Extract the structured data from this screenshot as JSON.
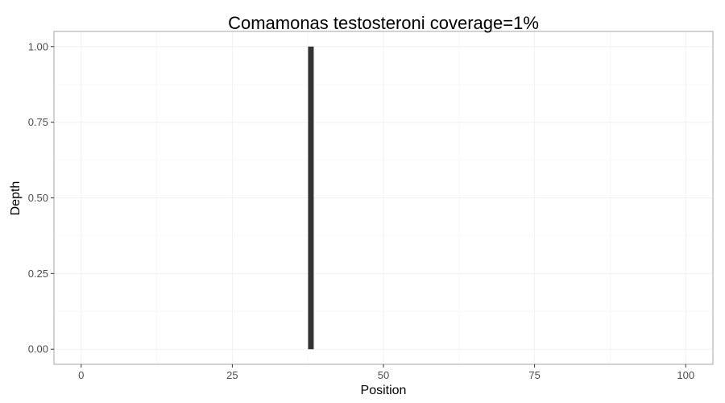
{
  "chart_data": {
    "type": "bar",
    "title": "Comamonas testosteroni coverage=1%",
    "xlabel": "Position",
    "ylabel": "Depth",
    "xlim": [
      -4.5,
      104.5
    ],
    "ylim": [
      -0.05,
      1.05
    ],
    "x_ticks": [
      0,
      25,
      50,
      75,
      100
    ],
    "x_tick_labels": [
      "0",
      "25",
      "50",
      "75",
      "100"
    ],
    "y_ticks": [
      0.0,
      0.25,
      0.5,
      0.75,
      1.0
    ],
    "y_tick_labels": [
      "0.00",
      "0.25",
      "0.50",
      "0.75",
      "1.00"
    ],
    "grid": true,
    "series": [
      {
        "x": [
          38
        ],
        "values": [
          1.0
        ]
      }
    ],
    "colors": {
      "bar": "#333333",
      "panel_border": "#a6a6a6",
      "grid_major": "#f0f0f0",
      "grid_minor": "#f8f8f8",
      "tick_label": "#4d4d4d"
    }
  }
}
